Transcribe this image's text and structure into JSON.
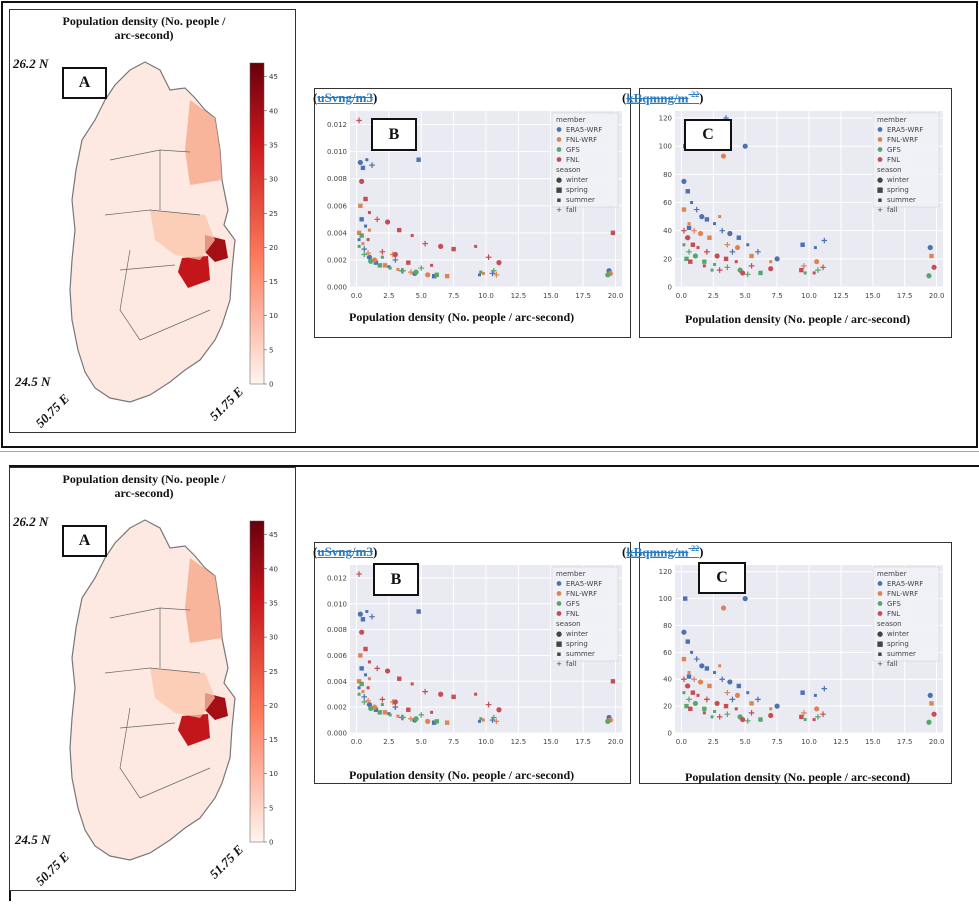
{
  "map": {
    "title_line1": "Population density (No. people /",
    "title_line2": "arc-second)",
    "lat_top": "26.2 N",
    "lat_bottom": "24.5 N",
    "lon_left": "50.75 E",
    "lon_right": "51.75 E",
    "letter": "A",
    "colorbar_ticks": [
      "0",
      "5",
      "10",
      "15",
      "20",
      "25",
      "30",
      "35",
      "40",
      "45"
    ],
    "colorbar_colors": [
      "#fff5f0",
      "#67000d"
    ]
  },
  "panel_b": {
    "letter": "B",
    "unit_open": "(",
    "unit_text": "uSvng/m3",
    "unit_close": ")",
    "xlabel": "Population density (No. people / arc-second)"
  },
  "panel_c": {
    "letter": "C",
    "unit_open": "(",
    "unit_text": "kBqmng/m",
    "unit_sup": "-22",
    "unit_close": ")",
    "xlabel": "Population density (No. people / arc-second)"
  },
  "legend": {
    "member_title": "member",
    "members": [
      {
        "name": "ERA5-WRF",
        "color": "#4c72b0"
      },
      {
        "name": "FNL-WRF",
        "color": "#dd8452"
      },
      {
        "name": "GFS",
        "color": "#55a868"
      },
      {
        "name": "FNL",
        "color": "#c44e52"
      }
    ],
    "season_title": "season",
    "seasons": [
      {
        "name": "winter",
        "marker": "●"
      },
      {
        "name": "spring",
        "marker": "■"
      },
      {
        "name": "summer",
        "marker": "▪"
      },
      {
        "name": "fall",
        "marker": "+"
      }
    ]
  },
  "chart_data": [
    {
      "type": "scatter",
      "title": "",
      "xlabel": "Population density (No. people / arc-second)",
      "ylabel": "",
      "xlim": [
        -0.5,
        20.5
      ],
      "ylim": [
        0,
        0.013
      ],
      "xticks": [
        "0.0",
        "2.5",
        "5.0",
        "7.5",
        "10.0",
        "12.5",
        "15.0",
        "17.5",
        "20.0"
      ],
      "yticks": [
        "0.000",
        "0.002",
        "0.004",
        "0.006",
        "0.008",
        "0.010",
        "0.012"
      ],
      "legend_position": "top-right",
      "series": [
        {
          "name": "ERA5-WRF",
          "points": [
            [
              0.3,
              0.0092
            ],
            [
              0.5,
              0.0088
            ],
            [
              0.8,
              0.0094
            ],
            [
              1.2,
              0.009
            ],
            [
              2.0,
              0.0108
            ],
            [
              4.8,
              0.0094
            ],
            [
              0.2,
              0.0035
            ],
            [
              0.6,
              0.0028
            ],
            [
              1.0,
              0.0022
            ],
            [
              1.5,
              0.0018
            ],
            [
              2.5,
              0.0015
            ],
            [
              3.5,
              0.0012
            ],
            [
              4.5,
              0.001
            ],
            [
              6.0,
              0.0008
            ],
            [
              9.5,
              0.0009
            ],
            [
              10.5,
              0.001
            ],
            [
              19.5,
              0.0012
            ],
            [
              0.4,
              0.005
            ],
            [
              0.7,
              0.0045
            ],
            [
              3.0,
              0.002
            ]
          ]
        },
        {
          "name": "FNL-WRF",
          "points": [
            [
              0.2,
              0.004
            ],
            [
              0.5,
              0.0032
            ],
            [
              0.9,
              0.0025
            ],
            [
              1.4,
              0.002
            ],
            [
              2.2,
              0.0016
            ],
            [
              3.2,
              0.0013
            ],
            [
              4.2,
              0.0011
            ],
            [
              5.5,
              0.0009
            ],
            [
              7.0,
              0.0008
            ],
            [
              9.8,
              0.001
            ],
            [
              10.8,
              0.0009
            ],
            [
              19.6,
              0.001
            ],
            [
              0.3,
              0.006
            ],
            [
              1.0,
              0.0042
            ],
            [
              2.8,
              0.0024
            ]
          ]
        },
        {
          "name": "GFS",
          "points": [
            [
              0.2,
              0.003
            ],
            [
              0.6,
              0.0024
            ],
            [
              1.1,
              0.0019
            ],
            [
              1.8,
              0.0016
            ],
            [
              2.6,
              0.0014
            ],
            [
              3.6,
              0.0012
            ],
            [
              4.6,
              0.0011
            ],
            [
              6.2,
              0.0009
            ],
            [
              9.6,
              0.0011
            ],
            [
              10.6,
              0.0012
            ],
            [
              19.4,
              0.0009
            ],
            [
              0.4,
              0.0038
            ],
            [
              2.0,
              0.0022
            ],
            [
              5.0,
              0.0014
            ]
          ]
        },
        {
          "name": "FNL",
          "points": [
            [
              0.2,
              0.0123
            ],
            [
              0.4,
              0.0078
            ],
            [
              0.7,
              0.0065
            ],
            [
              1.0,
              0.0055
            ],
            [
              1.6,
              0.005
            ],
            [
              2.4,
              0.0048
            ],
            [
              3.3,
              0.0042
            ],
            [
              4.3,
              0.0038
            ],
            [
              5.3,
              0.0032
            ],
            [
              6.5,
              0.003
            ],
            [
              7.5,
              0.0028
            ],
            [
              9.2,
              0.003
            ],
            [
              10.2,
              0.0022
            ],
            [
              11.0,
              0.0018
            ],
            [
              19.8,
              0.004
            ],
            [
              0.9,
              0.0035
            ],
            [
              2.0,
              0.0026
            ],
            [
              3.0,
              0.0024
            ],
            [
              4.0,
              0.0018
            ],
            [
              5.8,
              0.0016
            ]
          ]
        }
      ]
    },
    {
      "type": "scatter",
      "title": "",
      "xlabel": "Population density (No. people / arc-second)",
      "ylabel": "",
      "xlim": [
        -0.5,
        20.5
      ],
      "ylim": [
        0,
        125
      ],
      "xticks": [
        "0.0",
        "2.5",
        "5.0",
        "7.5",
        "10.0",
        "12.5",
        "15.0",
        "17.5",
        "20.0"
      ],
      "yticks": [
        "0",
        "20",
        "40",
        "60",
        "80",
        "100",
        "120"
      ],
      "legend_position": "top-right",
      "series": [
        {
          "name": "ERA5-WRF",
          "points": [
            [
              0.2,
              75
            ],
            [
              0.5,
              68
            ],
            [
              0.8,
              60
            ],
            [
              1.2,
              55
            ],
            [
              1.6,
              50
            ],
            [
              2.0,
              48
            ],
            [
              2.6,
              45
            ],
            [
              3.2,
              40
            ],
            [
              3.8,
              38
            ],
            [
              4.5,
              35
            ],
            [
              5.2,
              30
            ],
            [
              6.0,
              25
            ],
            [
              7.5,
              20
            ],
            [
              9.5,
              30
            ],
            [
              10.5,
              28
            ],
            [
              11.2,
              33
            ],
            [
              19.5,
              28
            ],
            [
              0.3,
              100
            ],
            [
              1.5,
              105
            ],
            [
              3.5,
              120
            ],
            [
              5.0,
              100
            ],
            [
              0.6,
              42
            ],
            [
              2.2,
              35
            ],
            [
              4.0,
              25
            ]
          ]
        },
        {
          "name": "FNL-WRF",
          "points": [
            [
              0.2,
              55
            ],
            [
              0.6,
              45
            ],
            [
              1.0,
              40
            ],
            [
              1.5,
              38
            ],
            [
              2.2,
              35
            ],
            [
              3.0,
              50
            ],
            [
              3.6,
              30
            ],
            [
              4.4,
              28
            ],
            [
              5.5,
              22
            ],
            [
              7.0,
              18
            ],
            [
              9.6,
              15
            ],
            [
              10.6,
              18
            ],
            [
              19.6,
              22
            ],
            [
              0.4,
              35
            ],
            [
              2.0,
              25
            ],
            [
              3.3,
              93
            ]
          ]
        },
        {
          "name": "GFS",
          "points": [
            [
              0.2,
              30
            ],
            [
              0.6,
              25
            ],
            [
              1.1,
              22
            ],
            [
              1.8,
              18
            ],
            [
              2.6,
              16
            ],
            [
              3.6,
              14
            ],
            [
              4.6,
              12
            ],
            [
              6.2,
              10
            ],
            [
              9.7,
              10
            ],
            [
              10.7,
              12
            ],
            [
              19.4,
              8
            ],
            [
              0.4,
              20
            ],
            [
              2.4,
              12
            ],
            [
              5.2,
              9
            ]
          ]
        },
        {
          "name": "FNL",
          "points": [
            [
              0.2,
              40
            ],
            [
              0.5,
              35
            ],
            [
              0.9,
              30
            ],
            [
              1.3,
              28
            ],
            [
              2.0,
              25
            ],
            [
              2.8,
              22
            ],
            [
              3.5,
              20
            ],
            [
              4.3,
              18
            ],
            [
              5.5,
              15
            ],
            [
              7.0,
              13
            ],
            [
              9.4,
              12
            ],
            [
              10.4,
              10
            ],
            [
              11.1,
              14
            ],
            [
              19.8,
              14
            ],
            [
              0.7,
              18
            ],
            [
              1.8,
              15
            ],
            [
              3.0,
              12
            ],
            [
              4.8,
              10
            ]
          ]
        }
      ]
    }
  ]
}
